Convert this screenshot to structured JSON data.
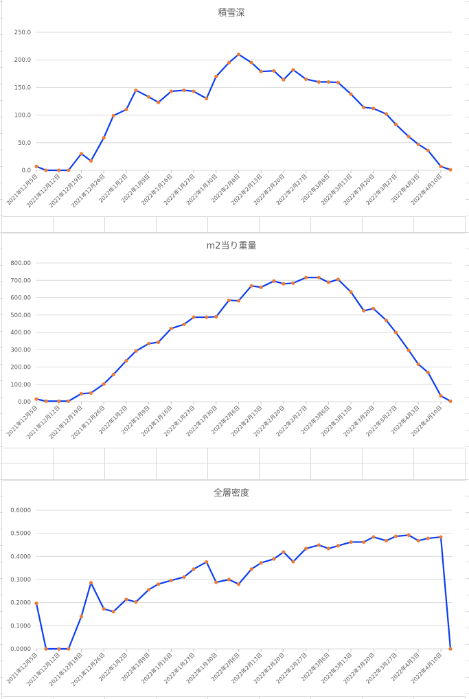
{
  "chart_data": [
    {
      "type": "line",
      "title": "積雪深",
      "xlabel": "",
      "ylabel": "",
      "ylim": [
        0,
        250
      ],
      "yticks": [
        "0.0",
        "50.0",
        "100.0",
        "150.0",
        "200.0",
        "250.0"
      ],
      "grid": true,
      "line_color": "#0a3cf5",
      "marker_color": "#ed7d31",
      "xlim": [
        "2021-12-05",
        "2022-04-13"
      ],
      "xticks": [
        "2021年12月5日",
        "2021年12月12日",
        "2021年12月19日",
        "2021年12月26日",
        "2022年1月2日",
        "2022年1月9日",
        "2022年1月16日",
        "2022年1月23日",
        "2022年1月30日",
        "2022年2月6日",
        "2022年2月13日",
        "2022年2月20日",
        "2022年2月27日",
        "2022年3月6日",
        "2022年3月13日",
        "2022年3月20日",
        "2022年3月27日",
        "2022年4月3日",
        "2022年4月10日"
      ],
      "x": [
        "2021-12-05",
        "2021-12-08",
        "2021-12-12",
        "2021-12-15",
        "2021-12-19",
        "2021-12-22",
        "2021-12-26",
        "2021-12-29",
        "2022-01-02",
        "2022-01-05",
        "2022-01-09",
        "2022-01-12",
        "2022-01-16",
        "2022-01-20",
        "2022-01-23",
        "2022-01-27",
        "2022-01-30",
        "2022-02-03",
        "2022-02-06",
        "2022-02-10",
        "2022-02-13",
        "2022-02-17",
        "2022-02-20",
        "2022-02-23",
        "2022-02-27",
        "2022-03-03",
        "2022-03-06",
        "2022-03-09",
        "2022-03-13",
        "2022-03-17",
        "2022-03-20",
        "2022-03-24",
        "2022-03-27",
        "2022-03-31",
        "2022-04-03",
        "2022-04-06",
        "2022-04-10",
        "2022-04-13"
      ],
      "values": [
        7,
        0,
        0,
        0,
        30,
        17,
        59,
        99,
        110,
        145,
        133,
        123,
        143,
        145,
        143,
        130,
        170,
        195,
        210,
        195,
        179,
        180,
        164,
        182,
        165,
        160,
        160,
        159,
        138,
        114,
        112,
        102,
        83,
        61,
        47,
        36,
        7,
        1
      ]
    },
    {
      "type": "line",
      "title": "m2当り重量",
      "xlabel": "",
      "ylabel": "",
      "ylim": [
        0,
        800
      ],
      "yticks": [
        "0.00",
        "100.00",
        "200.00",
        "300.00",
        "400.00",
        "500.00",
        "600.00",
        "700.00",
        "800.00"
      ],
      "grid": true,
      "line_color": "#0a3cf5",
      "marker_color": "#ed7d31",
      "xlim": [
        "2021-12-05",
        "2022-04-13"
      ],
      "xticks": [
        "2021年12月5日",
        "2021年12月12日",
        "2021年12月19日",
        "2021年12月26日",
        "2022年1月2日",
        "2022年1月9日",
        "2022年1月16日",
        "2022年1月23日",
        "2022年1月30日",
        "2022年2月6日",
        "2022年2月13日",
        "2022年2月20日",
        "2022年2月27日",
        "2022年3月6日",
        "2022年3月13日",
        "2022年3月20日",
        "2022年3月27日",
        "2022年4月3日",
        "2022年4月10日"
      ],
      "x": [
        "2021-12-05",
        "2021-12-08",
        "2021-12-12",
        "2021-12-15",
        "2021-12-19",
        "2021-12-22",
        "2021-12-26",
        "2021-12-29",
        "2022-01-02",
        "2022-01-05",
        "2022-01-09",
        "2022-01-12",
        "2022-01-16",
        "2022-01-20",
        "2022-01-23",
        "2022-01-27",
        "2022-01-30",
        "2022-02-03",
        "2022-02-06",
        "2022-02-10",
        "2022-02-13",
        "2022-02-17",
        "2022-02-20",
        "2022-02-23",
        "2022-02-27",
        "2022-03-03",
        "2022-03-06",
        "2022-03-09",
        "2022-03-13",
        "2022-03-17",
        "2022-03-20",
        "2022-03-24",
        "2022-03-27",
        "2022-03-31",
        "2022-04-03",
        "2022-04-06",
        "2022-04-10",
        "2022-04-13"
      ],
      "values": [
        15,
        3,
        3,
        3,
        46,
        50,
        102,
        157,
        236,
        292,
        335,
        343,
        422,
        446,
        487,
        487,
        490,
        585,
        582,
        668,
        660,
        696,
        680,
        684,
        716,
        716,
        688,
        705,
        632,
        525,
        537,
        469,
        399,
        296,
        216,
        169,
        34,
        3
      ]
    },
    {
      "type": "line",
      "title": "全層密度",
      "xlabel": "",
      "ylabel": "",
      "ylim": [
        0,
        0.6
      ],
      "yticks": [
        "0.0000",
        "0.1000",
        "0.2000",
        "0.3000",
        "0.4000",
        "0.5000",
        "0.6000"
      ],
      "grid": true,
      "line_color": "#0a3cf5",
      "marker_color": "#ed7d31",
      "xlim": [
        "2021-12-05",
        "2022-04-13"
      ],
      "xticks": [
        "2021年12月5日",
        "2021年12月12日",
        "2021年12月19日",
        "2021年12月26日",
        "2022年1月2日",
        "2022年1月9日",
        "2022年1月16日",
        "2022年1月23日",
        "2022年1月30日",
        "2022年2月6日",
        "2022年2月13日",
        "2022年2月20日",
        "2022年2月27日",
        "2022年3月6日",
        "2022年3月13日",
        "2022年3月20日",
        "2022年3月27日",
        "2022年4月3日",
        "2022年4月10日"
      ],
      "x": [
        "2021-12-05",
        "2021-12-08",
        "2021-12-12",
        "2021-12-15",
        "2021-12-19",
        "2021-12-22",
        "2021-12-26",
        "2021-12-29",
        "2022-01-02",
        "2022-01-05",
        "2022-01-09",
        "2022-01-12",
        "2022-01-16",
        "2022-01-20",
        "2022-01-23",
        "2022-01-27",
        "2022-01-30",
        "2022-02-03",
        "2022-02-06",
        "2022-02-10",
        "2022-02-13",
        "2022-02-17",
        "2022-02-20",
        "2022-02-23",
        "2022-02-27",
        "2022-03-03",
        "2022-03-06",
        "2022-03-09",
        "2022-03-13",
        "2022-03-17",
        "2022-03-20",
        "2022-03-24",
        "2022-03-27",
        "2022-03-31",
        "2022-04-03",
        "2022-04-06",
        "2022-04-10",
        "2022-04-13"
      ],
      "values": [
        0.197,
        0,
        0,
        0,
        0.14,
        0.286,
        0.173,
        0.161,
        0.214,
        0.203,
        0.256,
        0.28,
        0.296,
        0.311,
        0.345,
        0.376,
        0.288,
        0.3,
        0.28,
        0.345,
        0.372,
        0.389,
        0.419,
        0.377,
        0.434,
        0.449,
        0.434,
        0.446,
        0.462,
        0.462,
        0.484,
        0.468,
        0.487,
        0.492,
        0.468,
        0.478,
        0.484,
        0
      ]
    }
  ]
}
